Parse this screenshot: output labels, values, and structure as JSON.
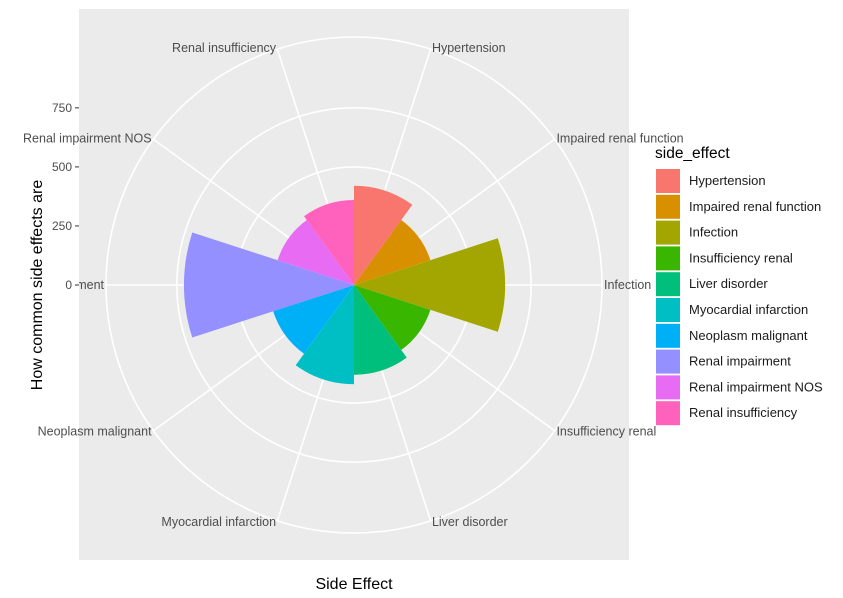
{
  "chart_data": {
    "type": "bar",
    "coord": "polar",
    "categories": [
      "Hypertension",
      "Impaired renal function",
      "Infection",
      "Insufficiency renal",
      "Liver disorder",
      "Myocardial infarction",
      "Neoplasm malignant",
      "Renal impairment",
      "Renal impairment NOS",
      "Renal insufficiency"
    ],
    "values": [
      420,
      340,
      640,
      340,
      380,
      420,
      360,
      720,
      340,
      360
    ],
    "colors": [
      "#F8766D",
      "#D89000",
      "#A3A500",
      "#39B600",
      "#00BF7D",
      "#00BFC4",
      "#00B0F6",
      "#9590FF",
      "#E76BF3",
      "#FF62BC"
    ],
    "ylim": [
      0,
      1050
    ],
    "ytick_values": [
      0,
      250,
      500,
      750
    ],
    "ytick_labels": [
      "0",
      "250",
      "500",
      "750"
    ],
    "category_labels": [
      "Hypertension",
      "Impaired renal function",
      "Infection",
      "Insufficiency renal",
      "Liver disorder",
      "Myocardial infarction",
      "Neoplasm malignant",
      "al impairment",
      "Renal impairment NOS",
      "Renal insufficiency"
    ],
    "xlabel": "Side Effect",
    "ylabel": "How common side effects are",
    "legend_title": "side_effect",
    "legend_position": "right",
    "grid": true
  }
}
